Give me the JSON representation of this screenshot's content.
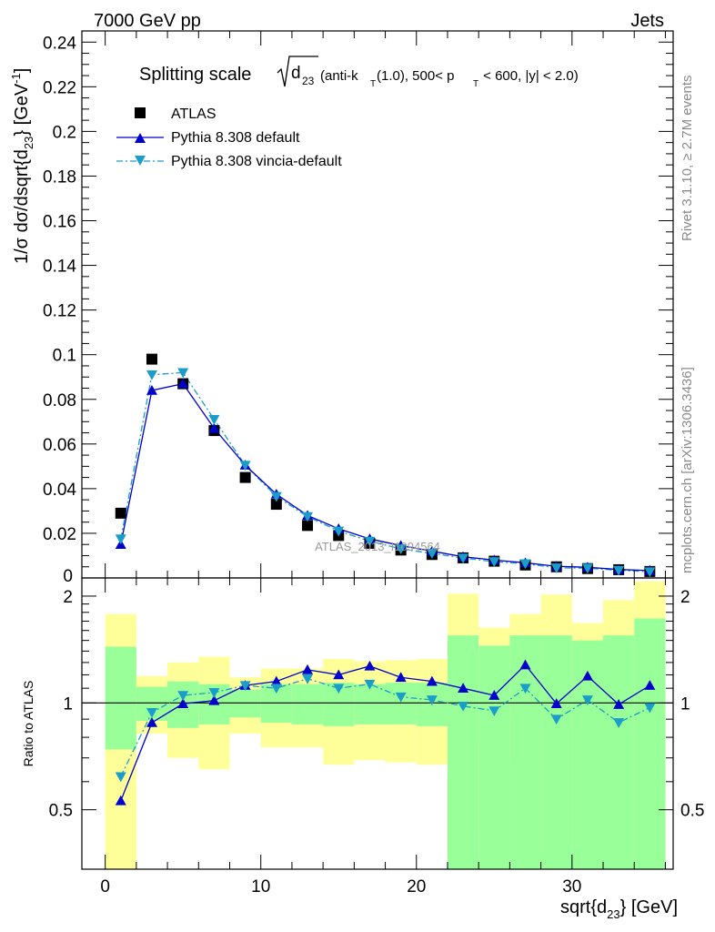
{
  "header": {
    "left": "7000 GeV pp",
    "right": "Jets"
  },
  "side_labels": {
    "rivet": "Rivet 3.1.10, ≥ 2.7M events",
    "mcplots": "mcplots.cern.ch [arXiv:1306.3436]"
  },
  "title": {
    "prefix": "Splitting scale",
    "var": "d",
    "var_sub": "23",
    "selection_1": "(anti-k",
    "selection_1_sub": "T",
    "selection_2": "(1.0), 500< p",
    "selection_2_sub": "T",
    "selection_3": " < 600, |y| < 2.0)"
  },
  "watermark": "ATLAS_2013_I1094564",
  "colors": {
    "atlas": "#000000",
    "default": "#0000cc",
    "vincia": "#1a9ec9",
    "band_inner": "#99ff99",
    "band_outer": "#ffff99"
  },
  "chart_data": {
    "type": "line",
    "x": [
      1,
      3,
      5,
      7,
      9,
      11,
      13,
      15,
      17,
      19,
      21,
      23,
      25,
      27,
      29,
      31,
      33,
      35
    ],
    "bin_edges": [
      0,
      2,
      4,
      6,
      8,
      10,
      12,
      14,
      16,
      18,
      20,
      22,
      24,
      26,
      28,
      30,
      32,
      34,
      36
    ],
    "main_panel": {
      "ylabel": "1/σ dσ/dsqrt{d",
      "ylabel_sub": "23",
      "ylabel_end": "} [GeV",
      "ylabel_sup": "-1",
      "ylabel_close": "]",
      "ylim": [
        0,
        0.245
      ],
      "yticks": [
        0.02,
        0.04,
        0.06,
        0.08,
        0.1,
        0.12,
        0.14,
        0.16,
        0.18,
        0.2,
        0.22,
        0.24
      ],
      "ytick_labels": [
        "0.02",
        "0.04",
        "0.06",
        "0.08",
        "0.1",
        "0.12",
        "0.14",
        "0.16",
        "0.18",
        "0.2",
        "0.22",
        "0.24"
      ],
      "bottom_tick_label": "0",
      "series": [
        {
          "name": "ATLAS",
          "marker": "square",
          "values": [
            0.029,
            0.098,
            0.087,
            0.066,
            0.045,
            0.033,
            0.0235,
            0.019,
            0.0155,
            0.0125,
            0.0105,
            0.009,
            0.0075,
            0.0058,
            0.005,
            0.0042,
            0.0037,
            0.0029
          ]
        },
        {
          "name": "Pythia 8.308 default",
          "marker": "triangle-up",
          "line": "solid",
          "values": [
            0.015,
            0.084,
            0.087,
            0.067,
            0.0505,
            0.0375,
            0.028,
            0.022,
            0.0175,
            0.0145,
            0.012,
            0.0095,
            0.008,
            0.0068,
            0.0052,
            0.0048,
            0.0038,
            0.0033
          ]
        },
        {
          "name": "Pythia 8.308 vincia-default",
          "marker": "triangle-down",
          "line": "dashdot",
          "values": [
            0.0175,
            0.091,
            0.092,
            0.071,
            0.0505,
            0.0365,
            0.0275,
            0.021,
            0.0165,
            0.013,
            0.011,
            0.0089,
            0.0073,
            0.0064,
            0.0045,
            0.0044,
            0.0034,
            0.0028
          ]
        }
      ]
    },
    "ratio_panel": {
      "ylabel": "Ratio to ATLAS",
      "ylim": [
        0.34,
        2.25
      ],
      "yticks": [
        0.5,
        1,
        2
      ],
      "ytick_labels": [
        "0.5",
        "1",
        "2"
      ],
      "reference": 1,
      "band_inner": [
        [
          0.74,
          1.44
        ],
        [
          0.89,
          1.11
        ],
        [
          0.85,
          1.15
        ],
        [
          0.87,
          1.13
        ],
        [
          0.91,
          1.09
        ],
        [
          0.88,
          1.13
        ],
        [
          0.87,
          1.13
        ],
        [
          0.86,
          1.14
        ],
        [
          0.87,
          1.13
        ],
        [
          0.87,
          1.14
        ],
        [
          0.86,
          1.14
        ],
        [
          0.34,
          1.55
        ],
        [
          0.34,
          1.45
        ],
        [
          0.34,
          1.55
        ],
        [
          0.34,
          1.55
        ],
        [
          0.34,
          1.5
        ],
        [
          0.34,
          1.55
        ],
        [
          0.34,
          1.73
        ]
      ],
      "band_outer": [
        [
          0.34,
          1.78
        ],
        [
          0.82,
          1.19
        ],
        [
          0.7,
          1.3
        ],
        [
          0.65,
          1.35
        ],
        [
          0.82,
          1.18
        ],
        [
          0.75,
          1.25
        ],
        [
          0.75,
          1.25
        ],
        [
          0.67,
          1.33
        ],
        [
          0.69,
          1.31
        ],
        [
          0.68,
          1.32
        ],
        [
          0.67,
          1.33
        ],
        [
          0.34,
          2.03
        ],
        [
          0.34,
          1.63
        ],
        [
          0.34,
          1.78
        ],
        [
          0.34,
          2.02
        ],
        [
          0.34,
          1.68
        ],
        [
          0.34,
          1.95
        ],
        [
          0.34,
          2.2
        ]
      ],
      "band_outer_bottom_override": [
        null,
        null,
        null,
        null,
        null,
        null,
        null,
        null,
        null,
        null,
        null,
        0.46,
        0.78,
        0.69,
        0.34,
        0.84,
        0.54,
        0.34
      ],
      "band_inner_bottom_override": [
        null,
        null,
        null,
        null,
        null,
        null,
        null,
        null,
        null,
        null,
        null,
        0.34,
        0.34,
        0.34,
        0.34,
        0.34,
        0.34,
        0.34
      ],
      "series": [
        {
          "name": "Pythia 8.308 default",
          "values": [
            0.53,
            0.88,
            0.995,
            1.015,
            1.12,
            1.15,
            1.24,
            1.2,
            1.27,
            1.18,
            1.15,
            1.1,
            1.05,
            1.28,
            0.995,
            1.19,
            0.99,
            1.12
          ]
        },
        {
          "name": "Pythia 8.308 vincia-default",
          "values": [
            0.62,
            0.94,
            1.05,
            1.07,
            1.12,
            1.1,
            1.17,
            1.1,
            1.13,
            1.04,
            1.02,
            0.98,
            0.95,
            1.1,
            0.9,
            1.02,
            0.88,
            0.97
          ]
        }
      ]
    },
    "xlabel": "sqrt{d",
    "xlabel_sub": "23",
    "xlabel_end": "} [GeV]",
    "xlim": [
      -1.5,
      36.5
    ],
    "xticks": [
      0,
      10,
      20,
      30
    ],
    "xtick_labels": [
      "0",
      "10",
      "20",
      "30"
    ]
  }
}
